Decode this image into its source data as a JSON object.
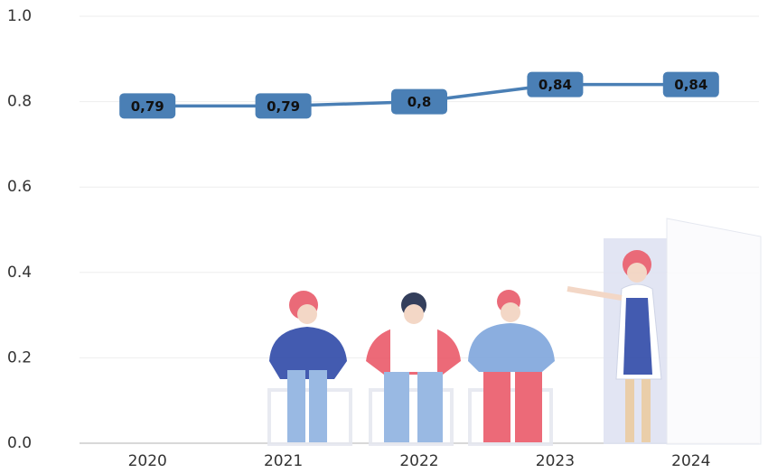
{
  "chart_data": {
    "type": "line",
    "categories": [
      "2020",
      "2021",
      "2022",
      "2023",
      "2024"
    ],
    "series": [
      {
        "color": "#4a7fb5",
        "values": [
          0.79,
          0.79,
          0.8,
          0.84,
          0.84
        ],
        "value_labels": [
          "0,79",
          "0,79",
          "0,8",
          "0,84",
          "0,84"
        ]
      }
    ],
    "ylim": [
      0,
      1
    ],
    "yticks": [
      {
        "value": 0,
        "label": "0.0"
      },
      0.2,
      0.4,
      0.6,
      0.8,
      {
        "value": 1,
        "label": "1.0"
      }
    ],
    "grid": true
  }
}
